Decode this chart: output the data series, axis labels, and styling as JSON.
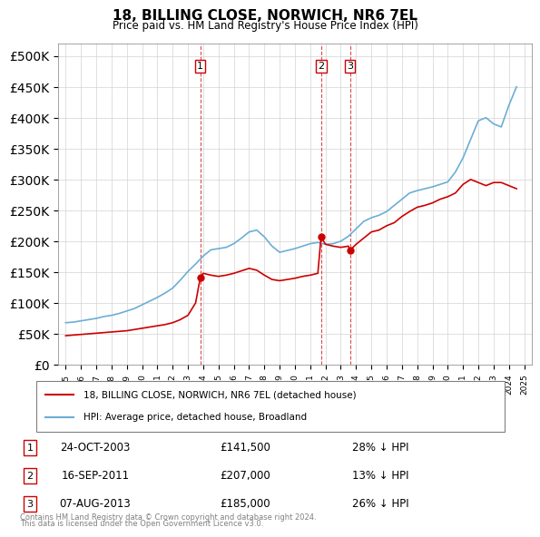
{
  "title": "18, BILLING CLOSE, NORWICH, NR6 7EL",
  "subtitle": "Price paid vs. HM Land Registry's House Price Index (HPI)",
  "legend_line1": "18, BILLING CLOSE, NORWICH, NR6 7EL (detached house)",
  "legend_line2": "HPI: Average price, detached house, Broadland",
  "footer1": "Contains HM Land Registry data © Crown copyright and database right 2024.",
  "footer2": "This data is licensed under the Open Government Licence v3.0.",
  "transactions": [
    {
      "label": "1",
      "date": "24-OCT-2003",
      "price": 141500,
      "pct": "28% ↓ HPI",
      "x": 2003.81
    },
    {
      "label": "2",
      "date": "16-SEP-2011",
      "price": 207000,
      "pct": "13% ↓ HPI",
      "x": 2011.71
    },
    {
      "label": "3",
      "date": "07-AUG-2013",
      "price": 185000,
      "pct": "26% ↓ HPI",
      "x": 2013.6
    }
  ],
  "hpi_color": "#6baed6",
  "price_color": "#cc0000",
  "vline_color": "#cc0000",
  "ylim": [
    0,
    520000
  ],
  "xlim_start": 1994.5,
  "xlim_end": 2025.5,
  "hpi_x": [
    1995,
    1995.5,
    1996,
    1996.5,
    1997,
    1997.5,
    1998,
    1998.5,
    1999,
    1999.5,
    2000,
    2000.5,
    2001,
    2001.5,
    2002,
    2002.5,
    2003,
    2003.5,
    2004,
    2004.5,
    2005,
    2005.5,
    2006,
    2006.5,
    2007,
    2007.5,
    2008,
    2008.5,
    2009,
    2009.5,
    2010,
    2010.5,
    2011,
    2011.5,
    2012,
    2012.5,
    2013,
    2013.5,
    2014,
    2014.5,
    2015,
    2015.5,
    2016,
    2016.5,
    2017,
    2017.5,
    2018,
    2018.5,
    2019,
    2019.5,
    2020,
    2020.5,
    2021,
    2021.5,
    2022,
    2022.5,
    2023,
    2023.5,
    2024,
    2024.5
  ],
  "hpi_y": [
    68000,
    69000,
    71000,
    73000,
    75000,
    78000,
    80000,
    83000,
    87000,
    91000,
    97000,
    103000,
    109000,
    116000,
    124000,
    137000,
    151000,
    163000,
    176000,
    186000,
    188000,
    190000,
    196000,
    205000,
    215000,
    218000,
    207000,
    192000,
    182000,
    185000,
    188000,
    192000,
    196000,
    198000,
    195000,
    196000,
    200000,
    208000,
    220000,
    232000,
    238000,
    242000,
    248000,
    258000,
    268000,
    278000,
    282000,
    285000,
    288000,
    292000,
    296000,
    312000,
    335000,
    365000,
    395000,
    400000,
    390000,
    385000,
    420000,
    450000
  ],
  "price_x": [
    1995,
    1995.5,
    1996,
    1996.5,
    1997,
    1997.5,
    1998,
    1998.5,
    1999,
    1999.5,
    2000,
    2000.5,
    2001,
    2001.5,
    2002,
    2002.5,
    2003,
    2003.5,
    2003.81,
    2004,
    2004.5,
    2005,
    2005.5,
    2006,
    2006.5,
    2007,
    2007.5,
    2008,
    2008.5,
    2009,
    2009.5,
    2010,
    2010.5,
    2011,
    2011.5,
    2011.71,
    2012,
    2012.5,
    2013,
    2013.5,
    2013.6,
    2014,
    2014.5,
    2015,
    2015.5,
    2016,
    2016.5,
    2017,
    2017.5,
    2018,
    2018.5,
    2019,
    2019.5,
    2020,
    2020.5,
    2021,
    2021.5,
    2022,
    2022.5,
    2023,
    2023.5,
    2024,
    2024.5
  ],
  "price_y": [
    47000,
    48000,
    49000,
    50000,
    51000,
    52000,
    53000,
    54000,
    55000,
    57000,
    59000,
    61000,
    63000,
    65000,
    68000,
    73000,
    80000,
    100000,
    141500,
    148000,
    145000,
    143000,
    145000,
    148000,
    152000,
    156000,
    153000,
    145000,
    138000,
    136000,
    138000,
    140000,
    143000,
    145000,
    148000,
    207000,
    195000,
    192000,
    190000,
    192000,
    185000,
    195000,
    205000,
    215000,
    218000,
    225000,
    230000,
    240000,
    248000,
    255000,
    258000,
    262000,
    268000,
    272000,
    278000,
    292000,
    300000,
    295000,
    290000,
    295000,
    295000,
    290000,
    285000
  ]
}
